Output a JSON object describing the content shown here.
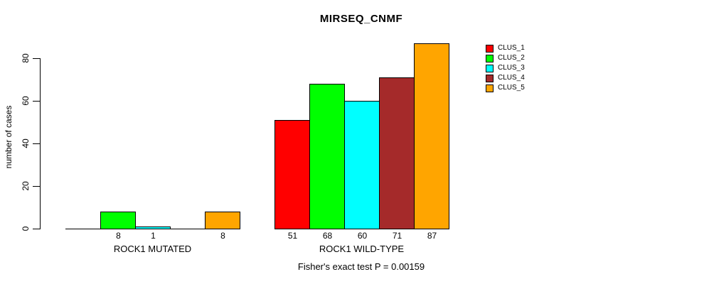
{
  "title": "MIRSEQ_CNMF",
  "y_axis": {
    "label": "number of cases",
    "ticks": [
      0,
      20,
      40,
      60,
      80
    ]
  },
  "footer": "Fisher's exact test P = 0.00159",
  "legend": {
    "position": "right",
    "items": [
      {
        "label": "CLUS_1",
        "color": "#FF0000"
      },
      {
        "label": "CLUS_2",
        "color": "#00FF00"
      },
      {
        "label": "CLUS_3",
        "color": "#00FFFF"
      },
      {
        "label": "CLUS_4",
        "color": "#A52A2A"
      },
      {
        "label": "CLUS_5",
        "color": "#FFA500"
      }
    ]
  },
  "chart_data": {
    "type": "bar",
    "title": "MIRSEQ_CNMF",
    "xlabel": "",
    "ylabel": "number of cases",
    "ylim": [
      0,
      87
    ],
    "y_ticks": [
      0,
      20,
      40,
      60,
      80
    ],
    "grid": false,
    "legend_position": "right",
    "series": [
      "CLUS_1",
      "CLUS_2",
      "CLUS_3",
      "CLUS_4",
      "CLUS_5"
    ],
    "colors": [
      "#FF0000",
      "#00FF00",
      "#00FFFF",
      "#A52A2A",
      "#FFA500"
    ],
    "groups": [
      {
        "label": "ROCK1 MUTATED",
        "values": [
          0,
          8,
          1,
          0,
          8
        ],
        "bar_labels": [
          "",
          "8",
          "1",
          "",
          "8"
        ]
      },
      {
        "label": "ROCK1 WILD-TYPE",
        "values": [
          51,
          68,
          60,
          71,
          87
        ],
        "bar_labels": [
          "51",
          "68",
          "60",
          "71",
          "87"
        ]
      }
    ],
    "annotation": "Fisher's exact test P = 0.00159"
  }
}
